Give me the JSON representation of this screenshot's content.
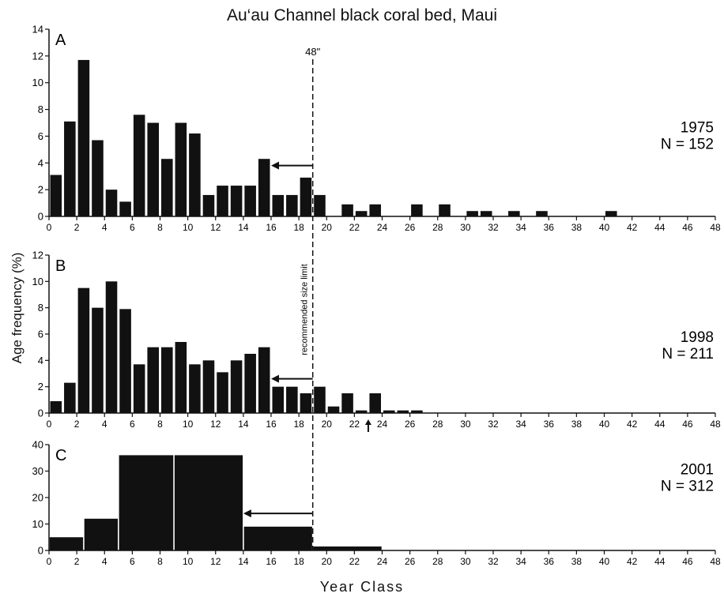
{
  "title": "Au‘au Channel black coral bed, Maui",
  "ylabel": "Age frequency (%)",
  "xlabel": "Year Class",
  "limit_label": "48\"",
  "limit_text": "recommended size limit",
  "chart_data": [
    {
      "type": "bar",
      "panel": "A",
      "year": "1975",
      "n_label": "N = 152",
      "xlim": [
        0,
        48
      ],
      "ylim": [
        0,
        14
      ],
      "yticks": [
        0,
        2,
        4,
        6,
        8,
        10,
        12,
        14
      ],
      "xticks": [
        "0",
        "2",
        "4",
        "6",
        "8",
        "10",
        "12",
        "14",
        "16",
        "18",
        "20",
        "22",
        "24",
        "26",
        "28",
        "30",
        "32",
        "34",
        "36",
        "38",
        "40",
        "42",
        "44",
        "46",
        "48"
      ],
      "bar_width": 1,
      "x": [
        0.5,
        1.5,
        2.5,
        3.5,
        4.5,
        5.5,
        6.5,
        7.5,
        8.5,
        9.5,
        10.5,
        11.5,
        12.5,
        13.5,
        14.5,
        15.5,
        16.5,
        17.5,
        18.5,
        19.5,
        21.5,
        22.5,
        23.5,
        26.5,
        28.5,
        30.5,
        31.5,
        33.5,
        35.5,
        40.5
      ],
      "values": [
        3.1,
        7.1,
        11.7,
        5.7,
        2.0,
        1.1,
        7.6,
        7.0,
        4.3,
        7.0,
        6.2,
        1.6,
        2.3,
        2.3,
        2.3,
        4.3,
        1.6,
        1.6,
        2.9,
        1.6,
        0.9,
        0.4,
        0.9,
        0.9,
        0.9,
        0.4,
        0.4,
        0.4,
        0.4,
        0.4
      ]
    },
    {
      "type": "bar",
      "panel": "B",
      "year": "1998",
      "n_label": "N = 211",
      "xlim": [
        0,
        48
      ],
      "ylim": [
        0,
        12
      ],
      "yticks": [
        0,
        2,
        4,
        6,
        8,
        10,
        12
      ],
      "xticks": [
        "0",
        "2",
        "4",
        "6",
        "8",
        "10",
        "12",
        "14",
        "16",
        "18",
        "20",
        "22",
        "24",
        "26",
        "28",
        "30",
        "32",
        "34",
        "36",
        "38",
        "40",
        "42",
        "44",
        "46",
        "48"
      ],
      "bar_width": 1,
      "x": [
        0.5,
        1.5,
        2.5,
        3.5,
        4.5,
        5.5,
        6.5,
        7.5,
        8.5,
        9.5,
        10.5,
        11.5,
        12.5,
        13.5,
        14.5,
        15.5,
        16.5,
        17.5,
        18.5,
        19.5,
        20.5,
        21.5,
        22.5,
        23.5,
        24.5,
        25.5,
        26.5
      ],
      "values": [
        0.9,
        2.3,
        9.5,
        8.0,
        10.0,
        7.9,
        3.7,
        5.0,
        5.0,
        5.4,
        3.7,
        4.0,
        3.1,
        4.0,
        4.5,
        5.0,
        2.0,
        2.0,
        1.5,
        2.0,
        0.5,
        1.5,
        0.2,
        1.5,
        0.2,
        0.2,
        0.2
      ],
      "marker_x": 23
    },
    {
      "type": "bar",
      "panel": "C",
      "year": "2001",
      "n_label": "N = 312",
      "xlim": [
        0,
        48
      ],
      "ylim": [
        0,
        40
      ],
      "yticks": [
        0,
        10,
        20,
        30,
        40
      ],
      "xticks": [
        "0",
        "2",
        "4",
        "6",
        "8",
        "10",
        "12",
        "14",
        "16",
        "18",
        "20",
        "22",
        "24",
        "26",
        "28",
        "30",
        "32",
        "34",
        "36",
        "38",
        "40",
        "42",
        "44",
        "46",
        "48"
      ],
      "bins": [
        [
          0,
          2.5
        ],
        [
          2.5,
          5
        ],
        [
          5,
          9
        ],
        [
          9,
          14
        ],
        [
          14,
          19
        ],
        [
          19,
          24
        ]
      ],
      "values": [
        5,
        12,
        36,
        36,
        9,
        1.5
      ]
    }
  ],
  "annotations": {
    "size_limit_year": 19,
    "arrows": [
      {
        "panel": "A",
        "from": 19,
        "to": 16,
        "y": 3.8
      },
      {
        "panel": "B",
        "from": 19,
        "to": 16,
        "y": 2.6
      },
      {
        "panel": "C",
        "from": 19,
        "to": 14,
        "y": 14
      }
    ]
  }
}
